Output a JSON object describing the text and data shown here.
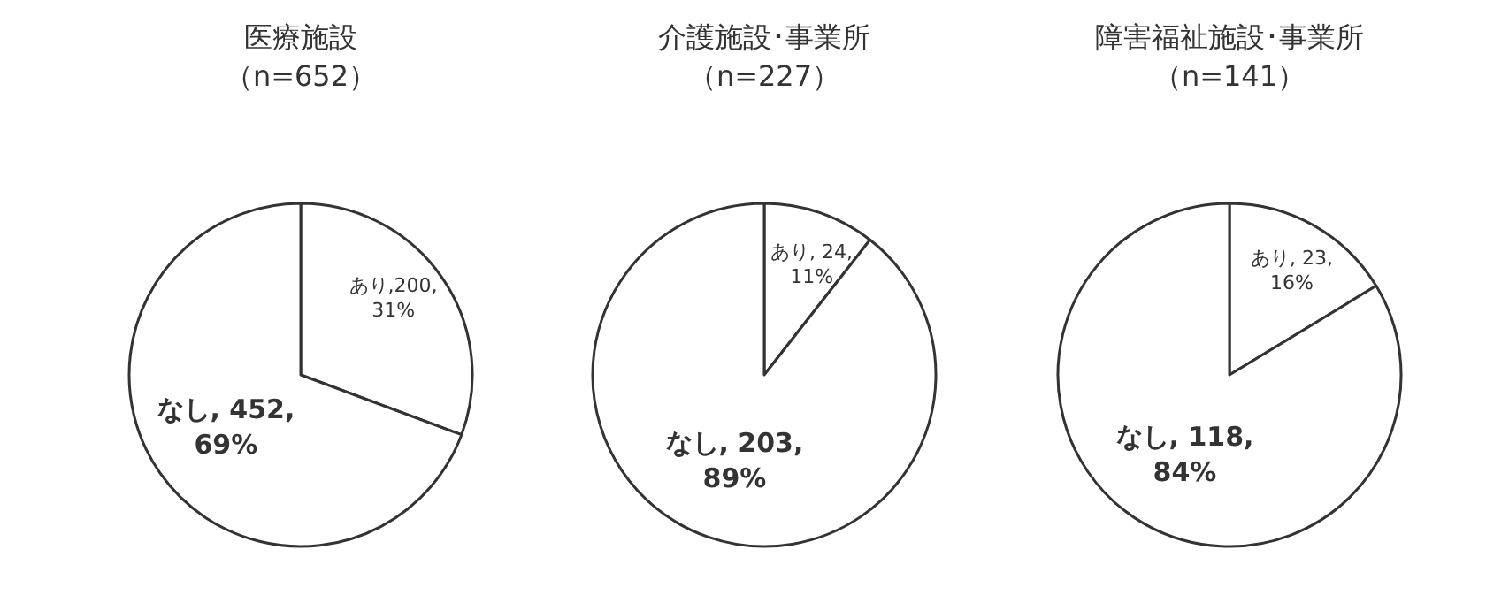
{
  "chart_data": [
    {
      "type": "pie",
      "title": "医療施設",
      "subtitle": "（n=652）",
      "categories": [
        "あり",
        "なし"
      ],
      "values": [
        200,
        452
      ],
      "colors": [
        "#ffffff",
        "#ffffff"
      ],
      "value_labels": [
        ",200,\n31%",
        ", 452,\n69%"
      ]
    },
    {
      "type": "pie",
      "title": "介護施設･事業所",
      "subtitle": "（n=227）",
      "categories": [
        "あり",
        "なし"
      ],
      "values": [
        24,
        203
      ],
      "colors": [
        "#ffffff",
        "#ffffff"
      ],
      "value_labels": [
        ", 24,\n11%",
        ", 203,\n89%"
      ]
    },
    {
      "type": "pie",
      "title": "障害福祉施設･事業所",
      "subtitle": "（n=141）",
      "categories": [
        "あり",
        "なし"
      ],
      "values": [
        23,
        118
      ],
      "colors": [
        "#ffffff",
        "#ffffff"
      ],
      "value_labels": [
        ", 23,\n16%",
        ", 118,\n84%"
      ]
    }
  ]
}
